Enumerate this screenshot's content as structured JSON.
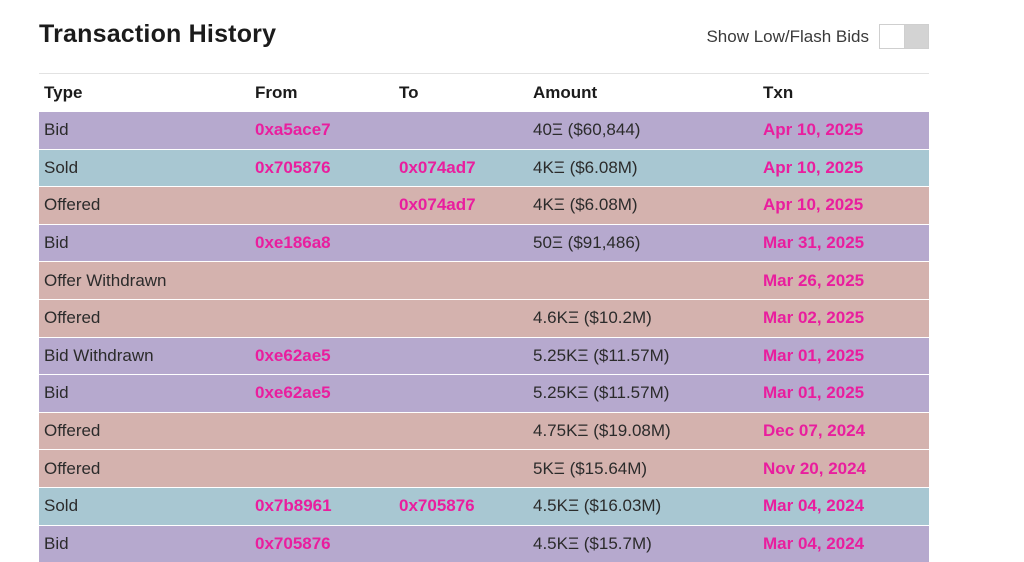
{
  "header": {
    "title": "Transaction History",
    "toggle_label": "Show Low/Flash Bids"
  },
  "table": {
    "columns": [
      "Type",
      "From",
      "To",
      "Amount",
      "Txn"
    ],
    "rows": [
      {
        "type": "Bid",
        "from": "0xa5ace7",
        "to": "",
        "amount": "40Ξ ($60,844)",
        "txn": "Apr 10, 2025",
        "kind": "bid"
      },
      {
        "type": "Sold",
        "from": "0x705876",
        "to": "0x074ad7",
        "amount": "4KΞ ($6.08M)",
        "txn": "Apr 10, 2025",
        "kind": "sold"
      },
      {
        "type": "Offered",
        "from": "",
        "to": "0x074ad7",
        "amount": "4KΞ ($6.08M)",
        "txn": "Apr 10, 2025",
        "kind": "offer"
      },
      {
        "type": "Bid",
        "from": "0xe186a8",
        "to": "",
        "amount": "50Ξ ($91,486)",
        "txn": "Mar 31, 2025",
        "kind": "bid"
      },
      {
        "type": "Offer Withdrawn",
        "from": "",
        "to": "",
        "amount": "",
        "txn": "Mar 26, 2025",
        "kind": "offer"
      },
      {
        "type": "Offered",
        "from": "",
        "to": "",
        "amount": "4.6KΞ ($10.2M)",
        "txn": "Mar 02, 2025",
        "kind": "offer"
      },
      {
        "type": "Bid Withdrawn",
        "from": "0xe62ae5",
        "to": "",
        "amount": "5.25KΞ ($11.57M)",
        "txn": "Mar 01, 2025",
        "kind": "bid"
      },
      {
        "type": "Bid",
        "from": "0xe62ae5",
        "to": "",
        "amount": "5.25KΞ ($11.57M)",
        "txn": "Mar 01, 2025",
        "kind": "bid"
      },
      {
        "type": "Offered",
        "from": "",
        "to": "",
        "amount": "4.75KΞ ($19.08M)",
        "txn": "Dec 07, 2024",
        "kind": "offer"
      },
      {
        "type": "Offered",
        "from": "",
        "to": "",
        "amount": "5KΞ ($15.64M)",
        "txn": "Nov 20, 2024",
        "kind": "offer"
      },
      {
        "type": "Sold",
        "from": "0x7b8961",
        "to": "0x705876",
        "amount": "4.5KΞ ($16.03M)",
        "txn": "Mar 04, 2024",
        "kind": "sold"
      },
      {
        "type": "Bid",
        "from": "0x705876",
        "to": "",
        "amount": "4.5KΞ ($15.7M)",
        "txn": "Mar 04, 2024",
        "kind": "bid"
      }
    ]
  },
  "colors": {
    "bid_row": "#b6a9ce",
    "sold_row": "#a8c7d2",
    "offer_row": "#d4b2ae",
    "link": "#e91e9e"
  }
}
